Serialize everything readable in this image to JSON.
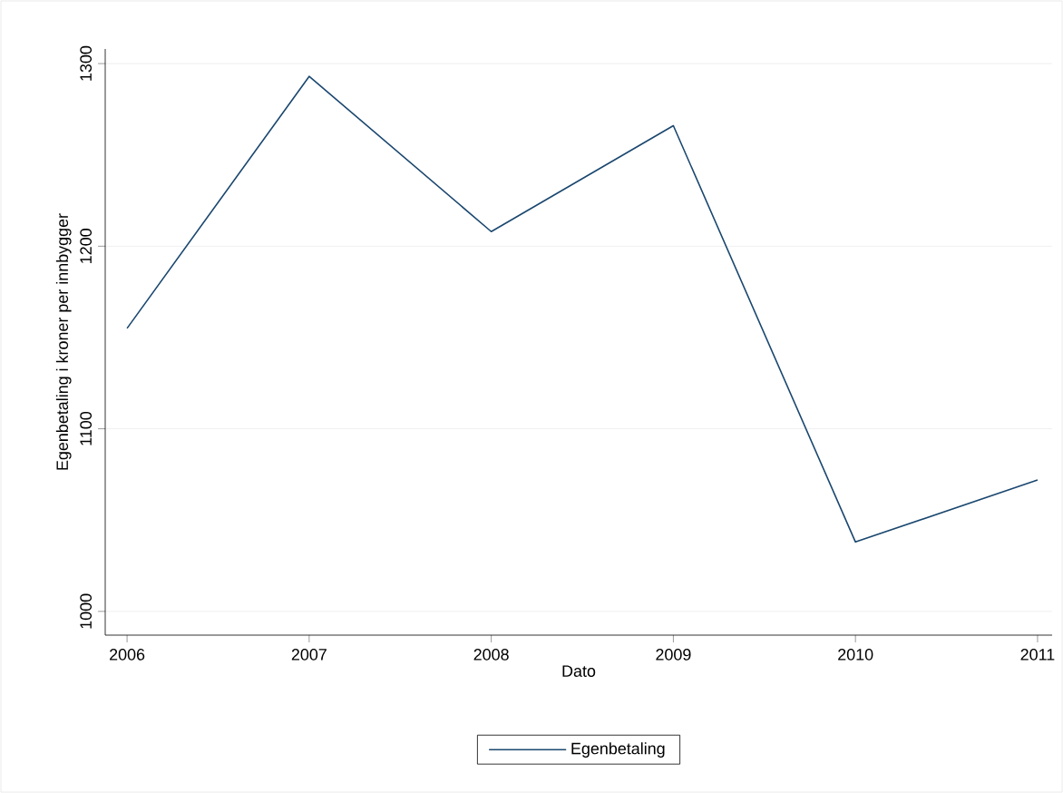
{
  "chart_data": {
    "type": "line",
    "xlabel": "Dato",
    "ylabel": "Egenbetaling i kroner per innbygger",
    "x": [
      2006,
      2007,
      2008,
      2009,
      2010,
      2011
    ],
    "series": [
      {
        "name": "Egenbetaling",
        "color": "#1a476f",
        "values": [
          1155,
          1293,
          1208,
          1266,
          1038,
          1072
        ]
      }
    ],
    "xlim": [
      2005.88,
      2011.08
    ],
    "ylim": [
      987,
      1308
    ],
    "xticks": [
      2006,
      2007,
      2008,
      2009,
      2010,
      2011
    ],
    "yticks": [
      1000,
      1100,
      1200,
      1300
    ],
    "grid": "y",
    "legend": "bottom",
    "marker": "none",
    "line_style": "solid"
  }
}
